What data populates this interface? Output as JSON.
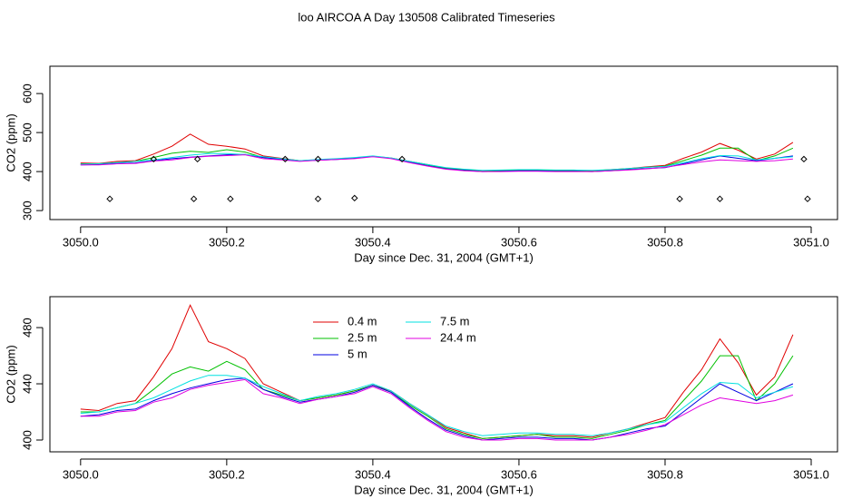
{
  "title": "loo AIRCOA A  Day 130508  Calibrated Timeseries",
  "chart_data": [
    {
      "type": "line",
      "xlabel": "Day since Dec. 31, 2004 (GMT+1)",
      "ylabel": "CO2 (ppm)",
      "xlim": [
        3049.958,
        3051.036
      ],
      "ylim": [
        277,
        670
      ],
      "xticks": [
        {
          "value": 3050,
          "label": "3050.0"
        },
        3050.2,
        3050.4,
        3050.6,
        3050.8,
        {
          "value": 3051,
          "label": "3051.0"
        }
      ],
      "yticks": [
        300,
        400,
        500,
        600
      ],
      "x": [
        3050.0,
        3050.025,
        3050.05,
        3050.075,
        3050.1,
        3050.125,
        3050.15,
        3050.175,
        3050.2,
        3050.225,
        3050.25,
        3050.275,
        3050.3,
        3050.325,
        3050.35,
        3050.375,
        3050.4,
        3050.425,
        3050.45,
        3050.475,
        3050.5,
        3050.525,
        3050.55,
        3050.575,
        3050.6,
        3050.625,
        3050.65,
        3050.675,
        3050.7,
        3050.725,
        3050.75,
        3050.775,
        3050.8,
        3050.825,
        3050.85,
        3050.875,
        3050.9,
        3050.925,
        3050.95,
        3050.975
      ],
      "series": [
        {
          "color": "#e00000",
          "values": [
            422,
            421,
            426,
            428,
            445,
            465,
            496,
            470,
            465,
            458,
            440,
            434,
            428,
            430,
            432,
            435,
            439,
            435,
            426,
            418,
            409,
            405,
            401,
            402,
            403,
            404,
            403,
            403,
            402,
            405,
            408,
            412,
            416,
            434,
            450,
            472,
            455,
            432,
            445,
            475
          ]
        },
        {
          "color": "#00c000",
          "values": [
            420,
            420,
            423,
            426,
            436,
            447,
            452,
            449,
            456,
            450,
            436,
            432,
            428,
            430,
            432,
            435,
            439,
            434,
            425,
            417,
            408,
            404,
            401,
            402,
            403,
            404,
            402,
            402,
            401,
            404,
            407,
            411,
            414,
            428,
            442,
            460,
            460,
            428,
            440,
            460
          ]
        },
        {
          "color": "#0000e0",
          "values": [
            417,
            418,
            421,
            422,
            428,
            433,
            437,
            440,
            443,
            444,
            436,
            431,
            427,
            429,
            431,
            434,
            439,
            434,
            424,
            415,
            407,
            403,
            400,
            401,
            402,
            402,
            401,
            401,
            400,
            402,
            405,
            408,
            410,
            420,
            430,
            440,
            434,
            428,
            434,
            440
          ]
        },
        {
          "color": "#00e0e0",
          "values": [
            419,
            420,
            423,
            426,
            430,
            436,
            442,
            446,
            446,
            444,
            438,
            433,
            428,
            431,
            433,
            436,
            440,
            435,
            426,
            418,
            410,
            406,
            403,
            404,
            405,
            405,
            404,
            404,
            403,
            405,
            408,
            411,
            413,
            423,
            433,
            441,
            440,
            430,
            434,
            438
          ]
        },
        {
          "color": "#e000e0",
          "values": [
            417,
            417,
            420,
            421,
            427,
            430,
            436,
            439,
            441,
            443,
            433,
            430,
            426,
            429,
            431,
            433,
            438,
            433,
            423,
            414,
            406,
            402,
            400,
            400,
            401,
            401,
            400,
            400,
            400,
            402,
            404,
            407,
            411,
            418,
            425,
            430,
            428,
            426,
            428,
            432
          ]
        }
      ],
      "markers": {
        "color": "#000000",
        "x": [
          3050.04,
          3050.1,
          3050.155,
          3050.16,
          3050.205,
          3050.28,
          3050.325,
          3050.325,
          3050.375,
          3050.44,
          3050.82,
          3050.875,
          3050.99,
          3050.995
        ],
        "y": [
          330,
          432,
          330,
          432,
          330,
          432,
          330,
          432,
          332,
          432,
          330,
          330,
          432,
          330
        ]
      }
    },
    {
      "type": "line",
      "xlabel": "Day since Dec. 31, 2004 (GMT+1)",
      "ylabel": "CO2 (ppm)",
      "xlim": [
        3049.958,
        3051.036
      ],
      "ylim": [
        391.6,
        502
      ],
      "xticks": [
        {
          "value": 3050,
          "label": "3050.0"
        },
        3050.2,
        3050.4,
        3050.6,
        3050.8,
        {
          "value": 3051,
          "label": "3051.0"
        }
      ],
      "yticks": [
        400,
        440,
        480
      ],
      "x": [
        3050.0,
        3050.025,
        3050.05,
        3050.075,
        3050.1,
        3050.125,
        3050.15,
        3050.175,
        3050.2,
        3050.225,
        3050.25,
        3050.275,
        3050.3,
        3050.325,
        3050.35,
        3050.375,
        3050.4,
        3050.425,
        3050.45,
        3050.475,
        3050.5,
        3050.525,
        3050.55,
        3050.575,
        3050.6,
        3050.625,
        3050.65,
        3050.675,
        3050.7,
        3050.725,
        3050.75,
        3050.775,
        3050.8,
        3050.825,
        3050.85,
        3050.875,
        3050.9,
        3050.925,
        3050.95,
        3050.975
      ],
      "series": [
        {
          "name": "0.4 m",
          "color": "#e00000",
          "values": [
            422,
            421,
            426,
            428,
            445,
            465,
            496,
            470,
            465,
            458,
            440,
            434,
            428,
            430,
            432,
            435,
            439,
            435,
            426,
            418,
            409,
            405,
            401,
            402,
            403,
            404,
            403,
            403,
            402,
            405,
            408,
            412,
            416,
            434,
            450,
            472,
            455,
            432,
            445,
            475
          ]
        },
        {
          "name": "2.5 m",
          "color": "#00c000",
          "values": [
            420,
            420,
            423,
            426,
            436,
            447,
            452,
            449,
            456,
            450,
            436,
            432,
            428,
            430,
            432,
            435,
            439,
            434,
            425,
            417,
            408,
            404,
            401,
            402,
            403,
            404,
            402,
            402,
            401,
            404,
            407,
            411,
            414,
            428,
            442,
            460,
            460,
            428,
            440,
            460
          ]
        },
        {
          "name": "5 m",
          "color": "#0000e0",
          "values": [
            417,
            418,
            421,
            422,
            428,
            433,
            437,
            440,
            443,
            444,
            436,
            431,
            427,
            429,
            431,
            434,
            439,
            434,
            424,
            415,
            407,
            403,
            400,
            401,
            402,
            402,
            401,
            401,
            400,
            402,
            405,
            408,
            410,
            420,
            430,
            440,
            434,
            428,
            434,
            440
          ]
        },
        {
          "name": "7.5 m",
          "color": "#00e0e0",
          "values": [
            419,
            420,
            423,
            426,
            430,
            436,
            442,
            446,
            446,
            444,
            438,
            433,
            428,
            431,
            433,
            436,
            440,
            435,
            426,
            418,
            410,
            406,
            403,
            404,
            405,
            405,
            404,
            404,
            403,
            405,
            408,
            411,
            413,
            423,
            433,
            441,
            440,
            430,
            434,
            438
          ]
        },
        {
          "name": "24.4 m",
          "color": "#e000e0",
          "values": [
            417,
            417,
            420,
            421,
            427,
            430,
            436,
            439,
            441,
            443,
            433,
            430,
            426,
            429,
            431,
            433,
            438,
            433,
            423,
            414,
            406,
            402,
            400,
            400,
            401,
            401,
            400,
            400,
            400,
            402,
            404,
            407,
            411,
            418,
            425,
            430,
            428,
            426,
            428,
            432
          ]
        }
      ],
      "legend": "top-left"
    }
  ]
}
